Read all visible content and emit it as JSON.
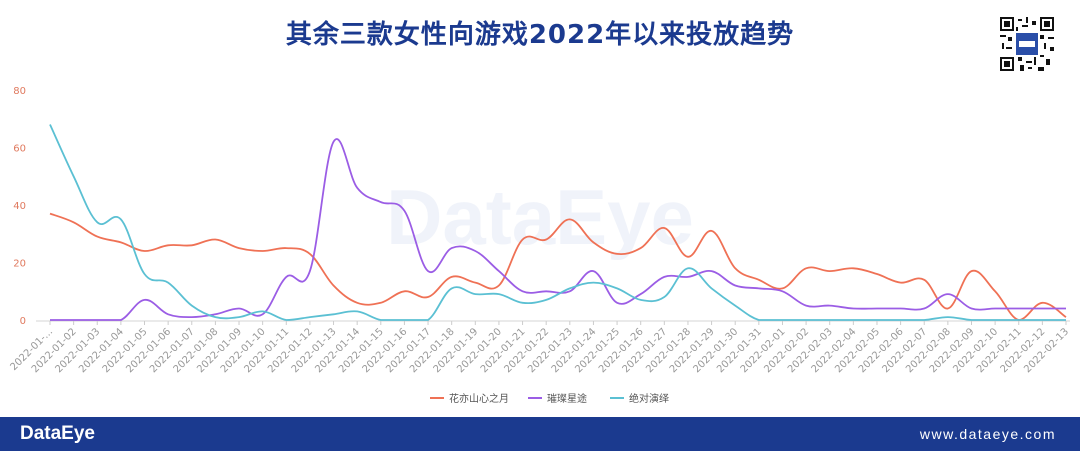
{
  "header": {
    "title": "其余三款女性向游戏2022年以来投放趋势"
  },
  "watermark": "DataEye",
  "footer": {
    "brand": "DataEye",
    "url": "www.dataeye.com"
  },
  "colors": {
    "title": "#1b3a8f",
    "footer_bg": "#1b3a8f",
    "axis_label": "#e07a5f"
  },
  "chart_data": {
    "type": "line",
    "title": "其余三款女性向游戏2022年以来投放趋势",
    "xlabel": "",
    "ylabel": "",
    "ylim": [
      0,
      80
    ],
    "yticks": [
      0,
      20,
      40,
      60,
      80
    ],
    "smooth": true,
    "grid": false,
    "legend_position": "bottom-center",
    "categories": [
      "2022-01-...",
      "2022-01-02",
      "2022-01-03",
      "2022-01-04",
      "2022-01-05",
      "2022-01-06",
      "2022-01-07",
      "2022-01-08",
      "2022-01-09",
      "2022-01-10",
      "2022-01-11",
      "2022-01-12",
      "2022-01-13",
      "2022-01-14",
      "2022-01-15",
      "2022-01-16",
      "2022-01-17",
      "2022-01-18",
      "2022-01-19",
      "2022-01-20",
      "2022-01-21",
      "2022-01-22",
      "2022-01-23",
      "2022-01-24",
      "2022-01-25",
      "2022-01-26",
      "2022-01-27",
      "2022-01-28",
      "2022-01-29",
      "2022-01-30",
      "2022-01-31",
      "2022-02-01",
      "2022-02-02",
      "2022-02-03",
      "2022-02-04",
      "2022-02-05",
      "2022-02-06",
      "2022-02-07",
      "2022-02-08",
      "2022-02-09",
      "2022-02-10",
      "2022-02-11",
      "2022-02-12",
      "2022-02-13"
    ],
    "series": [
      {
        "name": "花亦山心之月",
        "color": "#ef7155",
        "values": [
          37,
          34,
          29,
          27,
          24,
          26,
          26,
          28,
          25,
          24,
          25,
          23,
          12,
          6,
          6,
          10,
          8,
          15,
          13,
          12,
          28,
          28,
          35,
          27,
          23,
          25,
          32,
          22,
          31,
          18,
          14,
          11,
          18,
          17,
          18,
          16,
          13,
          14,
          4,
          17,
          10,
          0,
          6,
          1
        ]
      },
      {
        "name": "璀璨星途",
        "color": "#9b5de5",
        "values": [
          0,
          0,
          0,
          0,
          7,
          2,
          1,
          2,
          4,
          2,
          15,
          17,
          62,
          46,
          41,
          38,
          17,
          25,
          24,
          17,
          10,
          10,
          10,
          17,
          6,
          9,
          15,
          15,
          17,
          12,
          11,
          10,
          5,
          5,
          4,
          4,
          4,
          4,
          9,
          4,
          4,
          4,
          4,
          4
        ]
      },
      {
        "name": "绝对演绎",
        "color": "#5bc0d3",
        "values": [
          68,
          50,
          34,
          35,
          16,
          13,
          5,
          1,
          1,
          3,
          0,
          1,
          2,
          3,
          0,
          0,
          0,
          11,
          9,
          9,
          6,
          7,
          11,
          13,
          11,
          7,
          8,
          18,
          11,
          5,
          0,
          0,
          0,
          0,
          0,
          0,
          0,
          0,
          1,
          0,
          0,
          0,
          0,
          0
        ]
      }
    ]
  }
}
